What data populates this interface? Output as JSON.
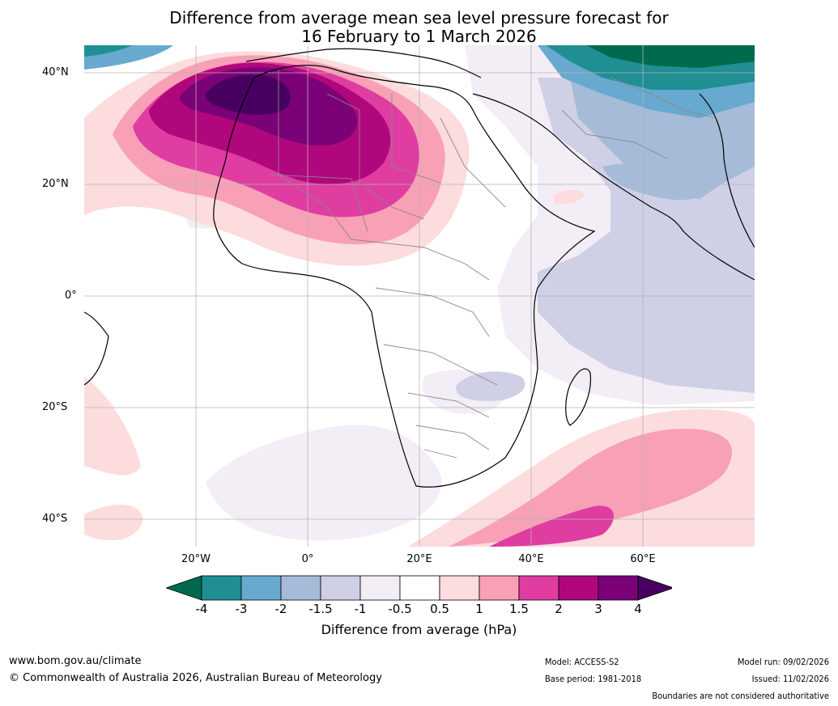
{
  "title": {
    "line1": "Difference from average mean sea level pressure forecast for",
    "line2": "16 February to 1 March 2026"
  },
  "axes": {
    "lat_labels": [
      "40°N",
      "20°N",
      "0°",
      "20°S",
      "40°S"
    ],
    "lon_labels": [
      "20°W",
      "0°",
      "20°E",
      "40°E",
      "60°E"
    ]
  },
  "colorbar": {
    "tick_labels": [
      "-4",
      "-3",
      "-2",
      "-1.5",
      "-1",
      "-0.5",
      "0.5",
      "1",
      "1.5",
      "2",
      "3",
      "4"
    ],
    "colors": [
      "#006a4e",
      "#1f8f93",
      "#67a9cf",
      "#a6bbd8",
      "#cfd0e6",
      "#f3edf6",
      "#ffffff",
      "#fddcdd",
      "#f8a0b6",
      "#df3da2",
      "#b0077d",
      "#7a0177",
      "#480060"
    ],
    "label": "Difference from average (hPa)"
  },
  "footer": {
    "website": "www.bom.gov.au/climate",
    "copyright": "© Commonwealth of Australia 2026, Australian Bureau of Meteorology",
    "model": "Model: ACCESS-S2",
    "base_period": "Base period: 1981-2018",
    "model_run": "Model run: 09/02/2026",
    "issued": "Issued: 11/02/2026",
    "disclaimer": "Boundaries are not considered authoritative"
  }
}
